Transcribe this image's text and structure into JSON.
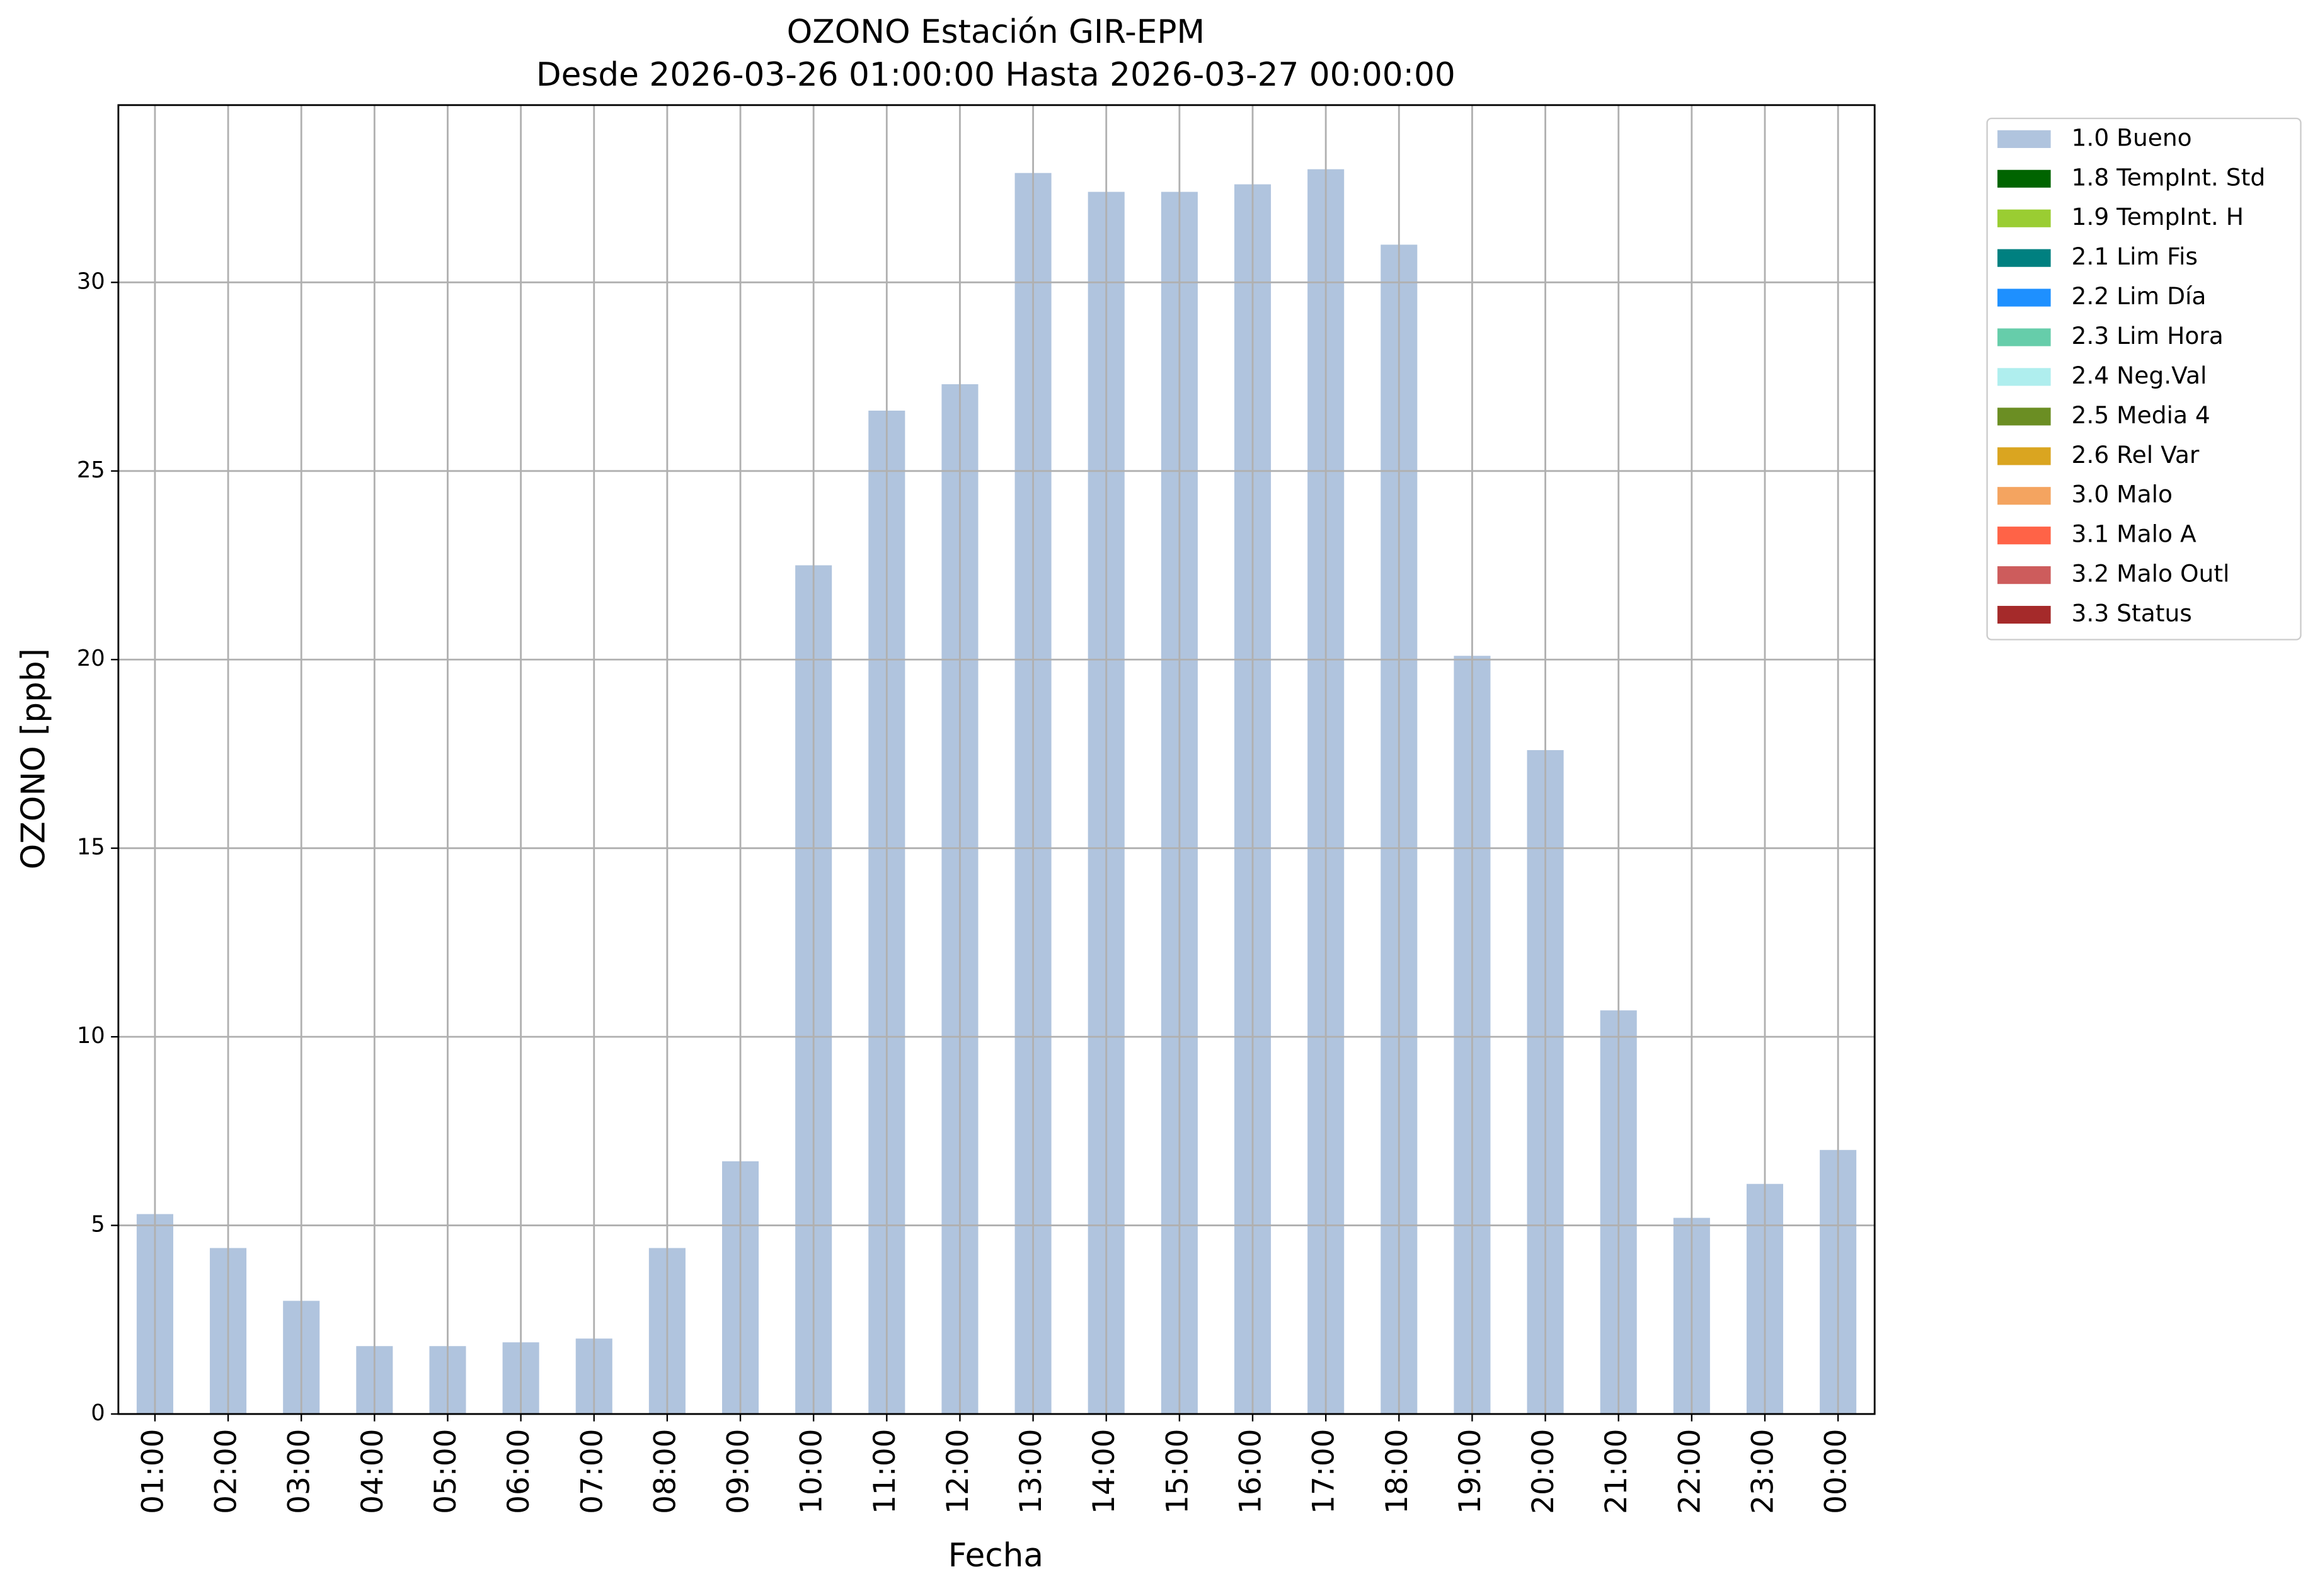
{
  "chart_data": {
    "type": "bar",
    "stacked": true,
    "title": "OZONO Estación GIR-EPM",
    "subtitle": "Desde 2026-03-26 01:00:00 Hasta 2026-03-27 00:00:00",
    "x_label": "Fecha",
    "y_label": "OZONO [ppb]",
    "categories": [
      "01:00",
      "02:00",
      "03:00",
      "04:00",
      "05:00",
      "06:00",
      "07:00",
      "08:00",
      "09:00",
      "10:00",
      "11:00",
      "12:00",
      "13:00",
      "14:00",
      "15:00",
      "16:00",
      "17:00",
      "18:00",
      "19:00",
      "20:00",
      "21:00",
      "22:00",
      "23:00",
      "00:00"
    ],
    "series": [
      {
        "name": "1.0 Bueno",
        "color": "#b0c4de",
        "values": [
          5.3,
          4.4,
          3.0,
          1.8,
          1.8,
          1.9,
          2.0,
          4.4,
          6.7,
          22.5,
          26.6,
          27.3,
          32.9,
          32.4,
          32.4,
          32.6,
          33.0,
          31.0,
          20.1,
          17.6,
          10.7,
          5.2,
          6.1,
          7.0
        ]
      },
      {
        "name": "1.8 TempInt. Std",
        "color": "#006400",
        "values": [
          0,
          0,
          0,
          0,
          0,
          0,
          0,
          0,
          0,
          0,
          0,
          0,
          0,
          0,
          0,
          0,
          0,
          0,
          0,
          0,
          0,
          0,
          0,
          0
        ]
      },
      {
        "name": "1.9 TempInt. H",
        "color": "#9acd32",
        "values": [
          0,
          0,
          0,
          0,
          0,
          0,
          0,
          0,
          0,
          0,
          0,
          0,
          0,
          0,
          0,
          0,
          0,
          0,
          0,
          0,
          0,
          0,
          0,
          0
        ]
      },
      {
        "name": "2.1 Lim Fis",
        "color": "#008080",
        "values": [
          0,
          0,
          0,
          0,
          0,
          0,
          0,
          0,
          0,
          0,
          0,
          0,
          0,
          0,
          0,
          0,
          0,
          0,
          0,
          0,
          0,
          0,
          0,
          0
        ]
      },
      {
        "name": "2.2 Lim Día",
        "color": "#1e90ff",
        "values": [
          0,
          0,
          0,
          0,
          0,
          0,
          0,
          0,
          0,
          0,
          0,
          0,
          0,
          0,
          0,
          0,
          0,
          0,
          0,
          0,
          0,
          0,
          0,
          0
        ]
      },
      {
        "name": "2.3 Lim Hora",
        "color": "#66cdaa",
        "values": [
          0,
          0,
          0,
          0,
          0,
          0,
          0,
          0,
          0,
          0,
          0,
          0,
          0,
          0,
          0,
          0,
          0,
          0,
          0,
          0,
          0,
          0,
          0,
          0
        ]
      },
      {
        "name": "2.4 Neg.Val",
        "color": "#afeeee",
        "values": [
          0,
          0,
          0,
          0,
          0,
          0,
          0,
          0,
          0,
          0,
          0,
          0,
          0,
          0,
          0,
          0,
          0,
          0,
          0,
          0,
          0,
          0,
          0,
          0
        ]
      },
      {
        "name": "2.5 Media 4",
        "color": "#6b8e23",
        "values": [
          0,
          0,
          0,
          0,
          0,
          0,
          0,
          0,
          0,
          0,
          0,
          0,
          0,
          0,
          0,
          0,
          0,
          0,
          0,
          0,
          0,
          0,
          0,
          0
        ]
      },
      {
        "name": "2.6 Rel Var",
        "color": "#daa520",
        "values": [
          0,
          0,
          0,
          0,
          0,
          0,
          0,
          0,
          0,
          0,
          0,
          0,
          0,
          0,
          0,
          0,
          0,
          0,
          0,
          0,
          0,
          0,
          0,
          0
        ]
      },
      {
        "name": "3.0 Malo",
        "color": "#f4a460",
        "values": [
          0,
          0,
          0,
          0,
          0,
          0,
          0,
          0,
          0,
          0,
          0,
          0,
          0,
          0,
          0,
          0,
          0,
          0,
          0,
          0,
          0,
          0,
          0,
          0
        ]
      },
      {
        "name": "3.1 Malo A",
        "color": "#ff6347",
        "values": [
          0,
          0,
          0,
          0,
          0,
          0,
          0,
          0,
          0,
          0,
          0,
          0,
          0,
          0,
          0,
          0,
          0,
          0,
          0,
          0,
          0,
          0,
          0,
          0
        ]
      },
      {
        "name": "3.2 Malo Outl",
        "color": "#cd5c5c",
        "values": [
          0,
          0,
          0,
          0,
          0,
          0,
          0,
          0,
          0,
          0,
          0,
          0,
          0,
          0,
          0,
          0,
          0,
          0,
          0,
          0,
          0,
          0,
          0,
          0
        ]
      },
      {
        "name": "3.3 Status",
        "color": "#a52a2a",
        "values": [
          0,
          0,
          0,
          0,
          0,
          0,
          0,
          0,
          0,
          0,
          0,
          0,
          0,
          0,
          0,
          0,
          0,
          0,
          0,
          0,
          0,
          0,
          0,
          0
        ]
      }
    ],
    "ylim": [
      0,
      34.7
    ],
    "yticks": [
      0,
      5,
      10,
      15,
      20,
      25,
      30
    ],
    "grid": true,
    "legend": "outside right"
  }
}
